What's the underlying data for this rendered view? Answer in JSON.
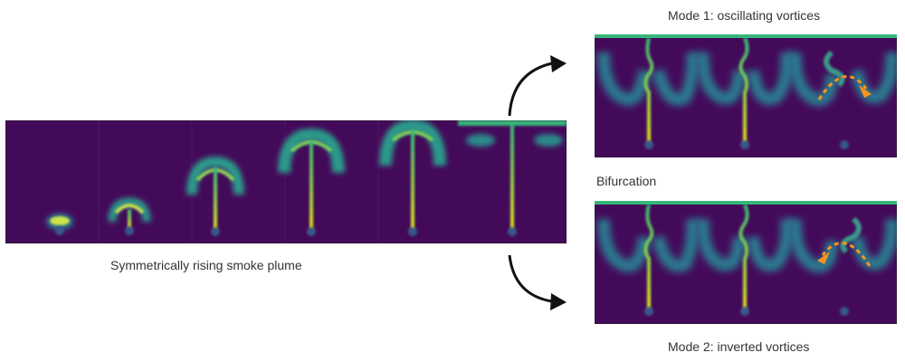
{
  "captions": {
    "plume": "Symmetrically rising smoke plume",
    "mode1": "Mode 1: oscillating vortices",
    "bifurcation": "Bifurcation",
    "mode2": "Mode 2: inverted vortices"
  },
  "colors": {
    "background_field": "#440a5a",
    "plume_core": "#cfe34a",
    "plume_edge": "#1fa187",
    "arrow_accent": "#f7931e",
    "arrow_black": "#111111"
  }
}
